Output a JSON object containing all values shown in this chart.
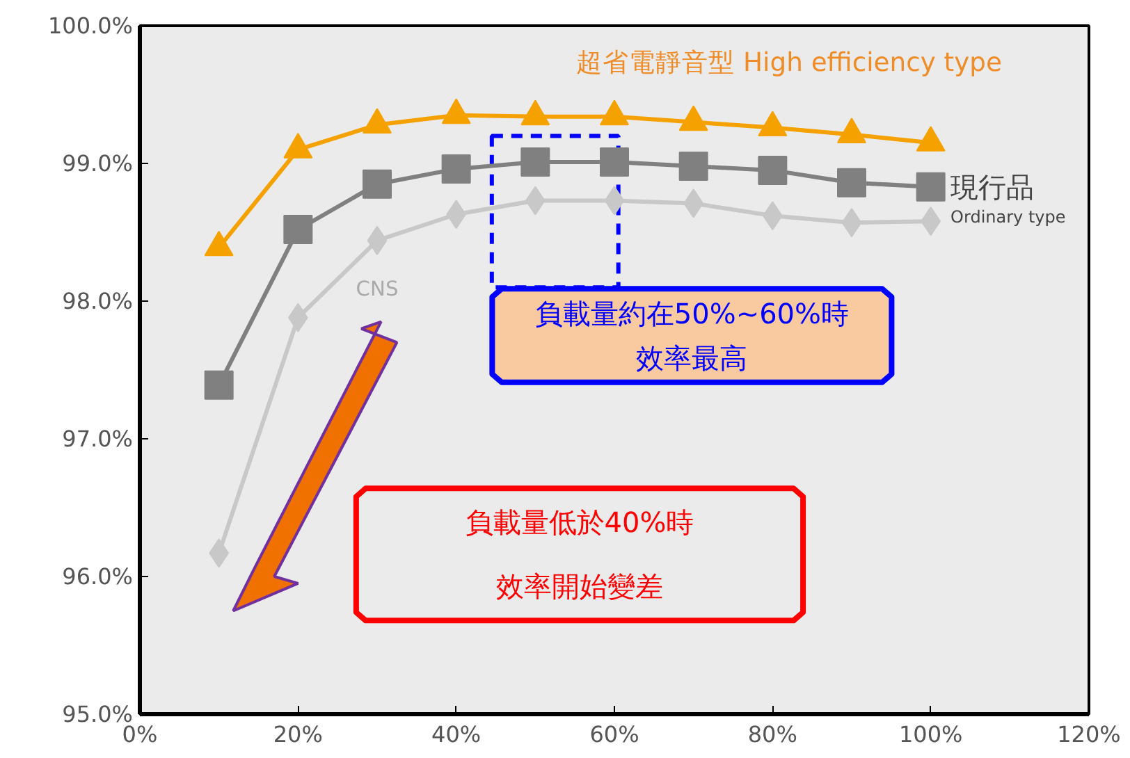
{
  "chart_data": {
    "type": "line",
    "x": [
      10,
      20,
      30,
      40,
      50,
      60,
      70,
      80,
      90,
      100
    ],
    "xlim": [
      0,
      120
    ],
    "xticks": [
      {
        "value": 0,
        "label": "0%"
      },
      {
        "value": 20,
        "label": "20%"
      },
      {
        "value": 40,
        "label": "40%"
      },
      {
        "value": 60,
        "label": "60%"
      },
      {
        "value": 80,
        "label": "80%"
      },
      {
        "value": 100,
        "label": "100%"
      },
      {
        "value": 120,
        "label": "120%"
      }
    ],
    "ylim": [
      95,
      100
    ],
    "yticks": [
      {
        "value": 95,
        "label": "95.0%"
      },
      {
        "value": 96,
        "label": "96.0%"
      },
      {
        "value": 97,
        "label": "97.0%"
      },
      {
        "value": 98,
        "label": "98.0%"
      },
      {
        "value": 99,
        "label": "99.0%"
      },
      {
        "value": 100,
        "label": "100.0%"
      }
    ],
    "series": [
      {
        "name": "超省電靜音型 High efficiency type",
        "color": "#f5a200",
        "marker": "triangle",
        "values": [
          98.39,
          99.1,
          99.28,
          99.35,
          99.34,
          99.34,
          99.3,
          99.26,
          99.21,
          99.15
        ]
      },
      {
        "name": "現行品",
        "color": "#808080",
        "marker": "square",
        "values": [
          97.39,
          98.52,
          98.85,
          98.96,
          99.01,
          99.01,
          98.98,
          98.95,
          98.86,
          98.83
        ]
      },
      {
        "name": "CNS",
        "color": "#c8c8c8",
        "marker": "diamond",
        "values": [
          96.17,
          97.88,
          98.44,
          98.63,
          98.73,
          98.73,
          98.71,
          98.62,
          98.57,
          98.58
        ]
      }
    ],
    "annotations": [
      {
        "text": "Ordinary type",
        "x": 100,
        "y": 98.83
      },
      "負載量約在50%~60%時",
      "效率最高",
      "負載量低於40%時",
      "效率開始變差"
    ],
    "grid": false,
    "legend": false
  }
}
